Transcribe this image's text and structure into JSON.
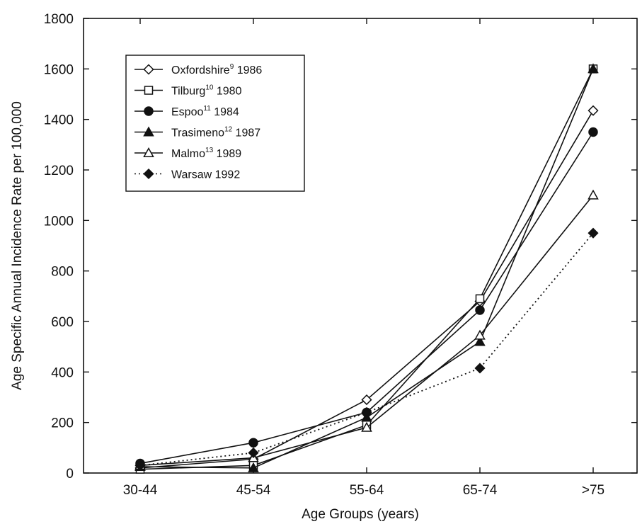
{
  "chart_data": {
    "type": "line",
    "xlabel": "Age Groups (years)",
    "ylabel": "Age Specific Annual Incidence Rate per 100,000",
    "categories": [
      "30-44",
      "45-54",
      "55-64",
      "65-74",
      ">75"
    ],
    "ylim": [
      0,
      1800
    ],
    "yticks": [
      0,
      200,
      400,
      600,
      800,
      1000,
      1200,
      1400,
      1600,
      1800
    ],
    "grid": false,
    "legend_position": "top-left",
    "series": [
      {
        "name": "Oxfordshire",
        "sup": "9",
        "year": "1986",
        "marker": "diamond-open",
        "line": "solid",
        "values": [
          20,
          55,
          290,
          680,
          1435
        ]
      },
      {
        "name": "Tilburg",
        "sup": "10",
        "year": "1980",
        "marker": "square-open",
        "line": "solid",
        "values": [
          15,
          30,
          190,
          690,
          1600
        ]
      },
      {
        "name": "Espoo",
        "sup": "11",
        "year": "1984",
        "marker": "circle-filled",
        "line": "solid",
        "values": [
          38,
          120,
          240,
          645,
          1350
        ]
      },
      {
        "name": "Trasimeno",
        "sup": "12",
        "year": "1987",
        "marker": "triangle-filled",
        "line": "solid",
        "values": [
          25,
          20,
          220,
          520,
          1600
        ]
      },
      {
        "name": "Malmo",
        "sup": "13",
        "year": "1989",
        "marker": "triangle-open",
        "line": "solid",
        "values": [
          30,
          60,
          180,
          545,
          1100
        ]
      },
      {
        "name": "Warsaw",
        "sup": "",
        "year": "1992",
        "marker": "diamond-filled",
        "line": "dotted",
        "values": [
          30,
          80,
          240,
          415,
          950
        ]
      }
    ]
  }
}
